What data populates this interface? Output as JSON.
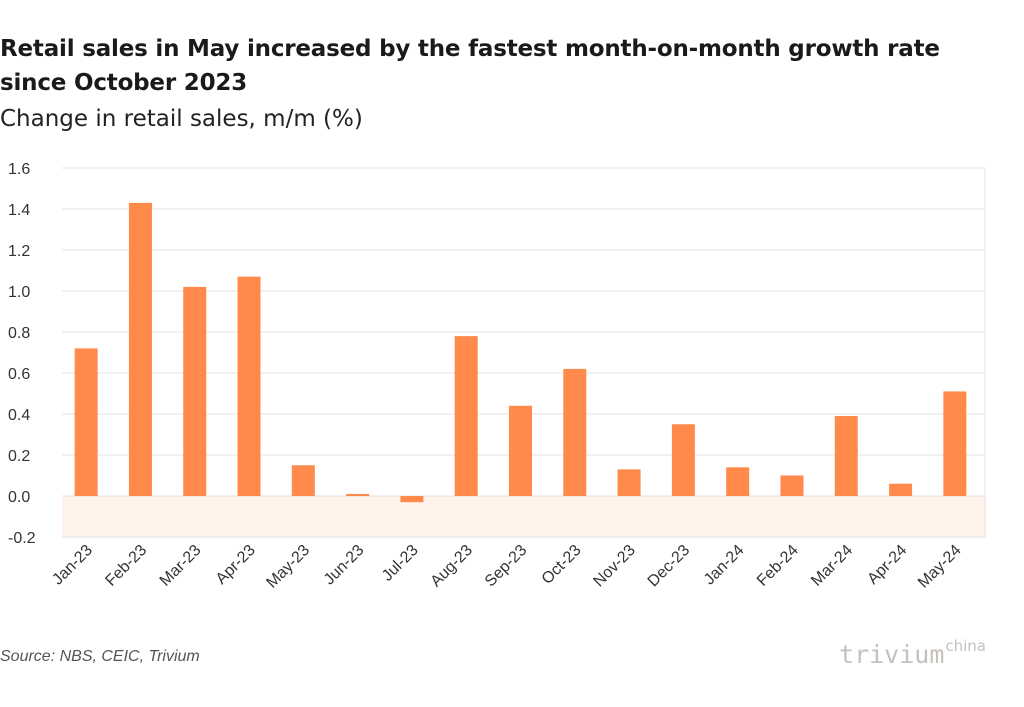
{
  "header": {
    "title": "Retail sales in May increased by the fastest month-on-month growth rate since October 2023",
    "subtitle": "Change in retail sales, m/m (%)"
  },
  "footer": {
    "source": "Source: NBS, CEIC, Trivium",
    "logo_main": "trivium",
    "logo_sup": "china"
  },
  "colors": {
    "bar": "#ff8a4c",
    "negative_band": "#fff3ec",
    "grid": "#e3e3e3"
  },
  "chart_data": {
    "type": "bar",
    "title": "Retail sales in May increased by the fastest month-on-month growth rate since October 2023",
    "subtitle": "Change in retail sales, m/m (%)",
    "categories": [
      "Jan-23",
      "Feb-23",
      "Mar-23",
      "Apr-23",
      "May-23",
      "Jun-23",
      "Jul-23",
      "Aug-23",
      "Sep-23",
      "Oct-23",
      "Nov-23",
      "Dec-23",
      "Jan-24",
      "Feb-24",
      "Mar-24",
      "Apr-24",
      "May-24"
    ],
    "values": [
      0.72,
      1.43,
      1.02,
      1.07,
      0.15,
      0.01,
      -0.03,
      0.78,
      0.44,
      0.62,
      0.13,
      0.35,
      0.14,
      0.1,
      0.39,
      0.06,
      0.51
    ],
    "ylim": [
      -0.2,
      1.6
    ],
    "yticks": [
      -0.2,
      0.0,
      0.2,
      0.4,
      0.6,
      0.8,
      1.0,
      1.2,
      1.4,
      1.6
    ],
    "ytick_labels": [
      "-0.2",
      "0.0",
      "0.2",
      "0.4",
      "0.6",
      "0.8",
      "1.0",
      "1.2",
      "1.4",
      "1.6"
    ],
    "xlabel": "",
    "ylabel": "",
    "grid": true,
    "negative_region_shaded": true
  }
}
